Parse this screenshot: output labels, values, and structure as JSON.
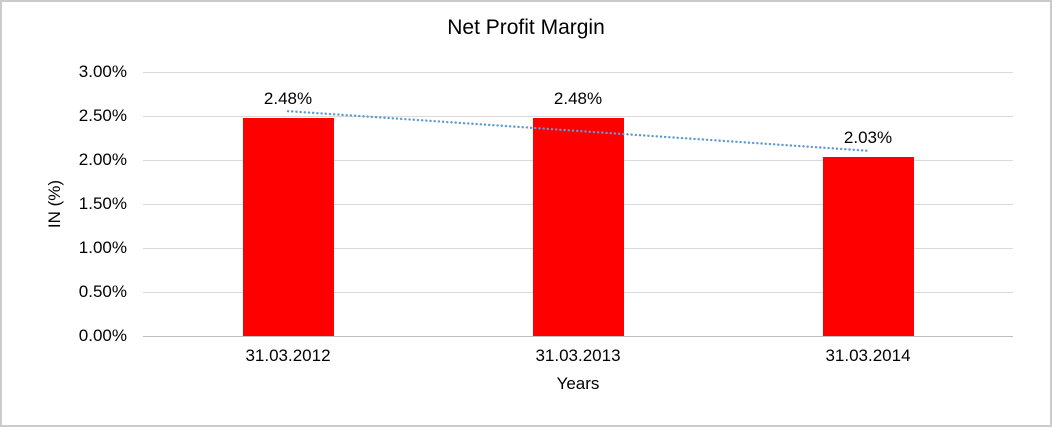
{
  "frame": {
    "background": "#ffffff",
    "border_color": "#cbcbcb"
  },
  "chart_data": {
    "type": "bar",
    "title": "Net Profit Margin",
    "xlabel": "Years",
    "ylabel": "IN (%)",
    "categories": [
      "31.03.2012",
      "31.03.2013",
      "31.03.2014"
    ],
    "values": [
      2.48,
      2.48,
      2.03
    ],
    "data_labels": [
      "2.48%",
      "2.48%",
      "2.03%"
    ],
    "ylim": [
      0,
      3
    ],
    "yticks": [
      {
        "value": 0.0,
        "label": "0.00%"
      },
      {
        "value": 0.5,
        "label": "0.50%"
      },
      {
        "value": 1.0,
        "label": "1.00%"
      },
      {
        "value": 1.5,
        "label": "1.50%"
      },
      {
        "value": 2.0,
        "label": "2.00%"
      },
      {
        "value": 2.5,
        "label": "2.50%"
      },
      {
        "value": 3.0,
        "label": "3.00%"
      }
    ],
    "grid": "horizontal",
    "legend": "none",
    "bar_color": "#ff0000",
    "gridline_color": "#d9d9d9",
    "text_color": "#000000",
    "trendline": {
      "type": "linear",
      "style": "dotted",
      "color": "#5b9bd5",
      "start_value": 2.555,
      "end_value": 2.105
    }
  }
}
